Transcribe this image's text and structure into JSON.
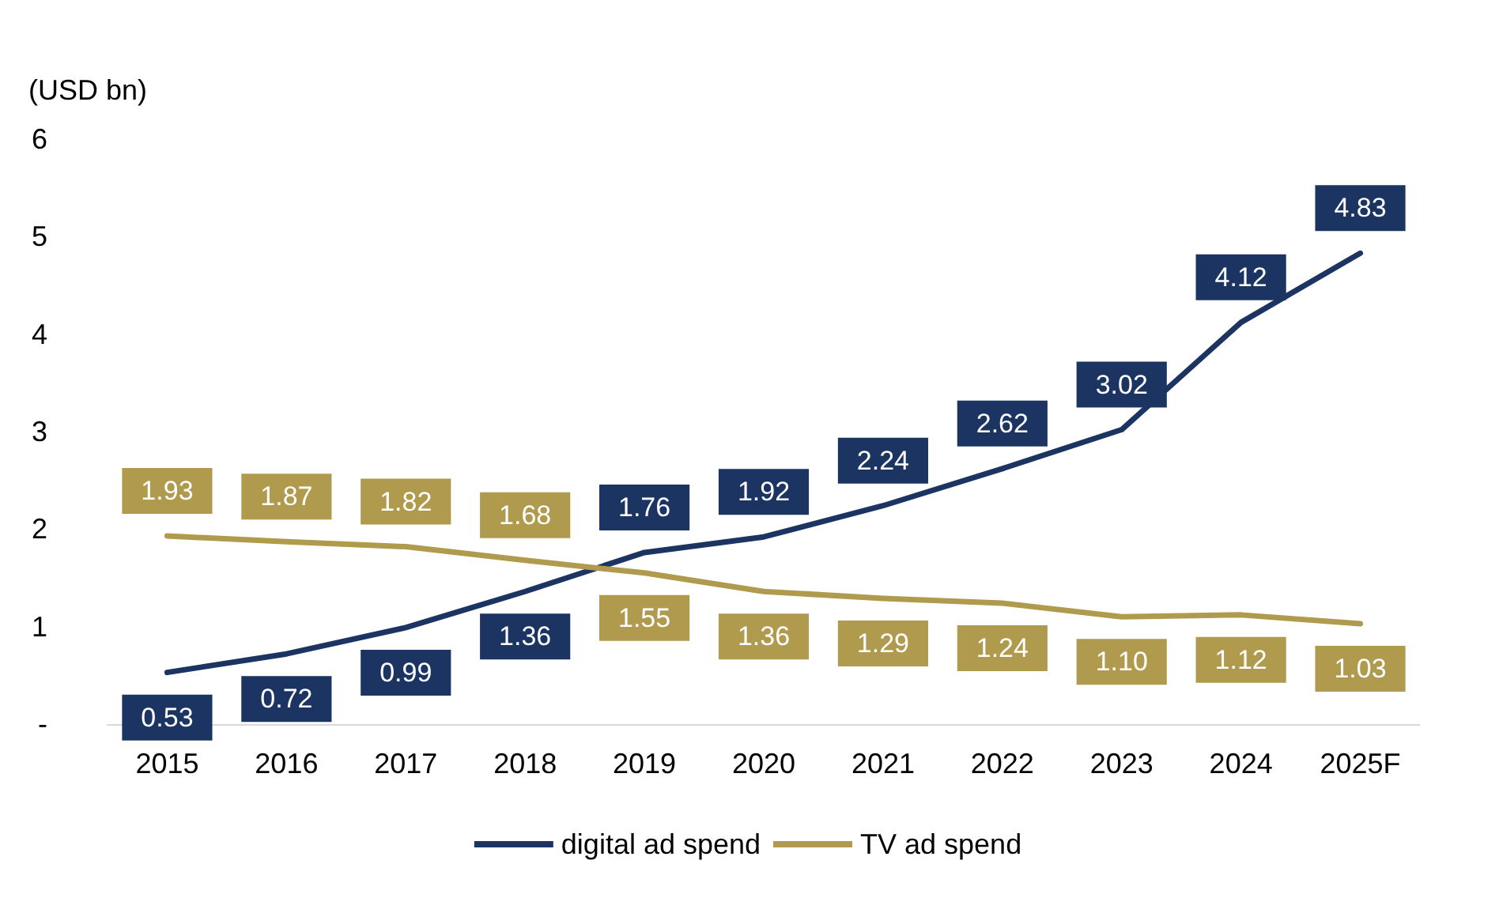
{
  "chart_data": {
    "type": "line",
    "ylabel": "(USD bn)",
    "categories": [
      "2015",
      "2016",
      "2017",
      "2018",
      "2019",
      "2020",
      "2021",
      "2022",
      "2023",
      "2024",
      "2025F"
    ],
    "series": [
      {
        "name": "digital ad spend",
        "color": "#1b3461",
        "values": [
          0.53,
          0.72,
          0.99,
          1.36,
          1.76,
          1.92,
          2.24,
          2.62,
          3.02,
          4.12,
          4.83
        ],
        "value_labels": [
          "0.53",
          "0.72",
          "0.99",
          "1.36",
          "1.76",
          "1.92",
          "2.24",
          "2.62",
          "3.02",
          "4.12",
          "4.83"
        ]
      },
      {
        "name": "TV ad spend",
        "color": "#b09a4e",
        "values": [
          1.93,
          1.87,
          1.82,
          1.68,
          1.55,
          1.36,
          1.29,
          1.24,
          1.1,
          1.12,
          1.03
        ],
        "value_labels": [
          "1.93",
          "1.87",
          "1.82",
          "1.68",
          "1.55",
          "1.36",
          "1.29",
          "1.24",
          "1.10",
          "1.12",
          "1.03"
        ]
      }
    ],
    "ylim": [
      0,
      6
    ],
    "yticks": [
      {
        "value": 0,
        "label": "-"
      },
      1,
      2,
      3,
      4,
      5,
      6
    ],
    "grid": false,
    "legend": "bottom",
    "marker": "none",
    "line_style": "solid"
  }
}
